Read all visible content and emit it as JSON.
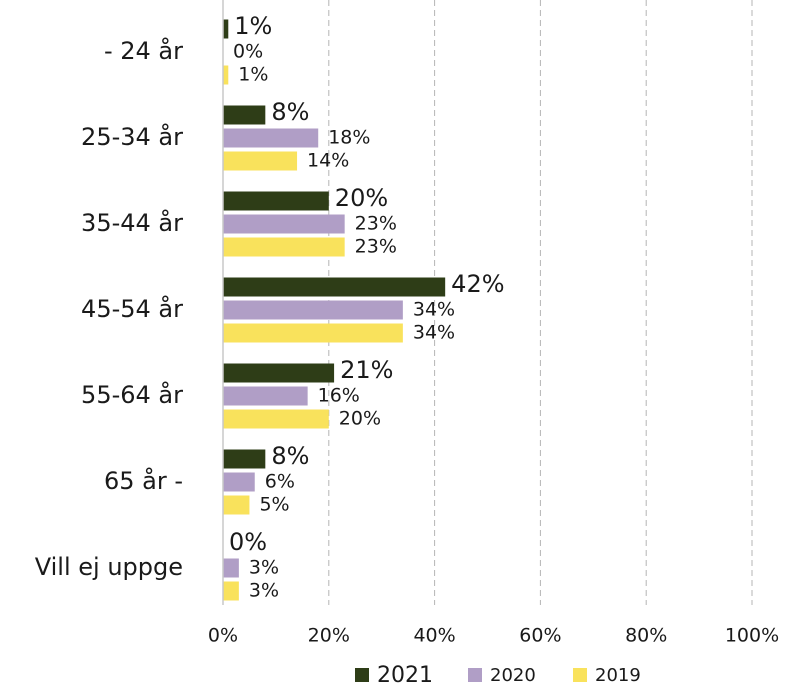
{
  "chart_data": {
    "type": "hbar",
    "categories": [
      "- 24 år",
      "25-34 år",
      "35-44 år",
      "45-54 år",
      "55-64 år",
      "65 år -",
      "Vill ej uppge"
    ],
    "series": [
      {
        "name": "2021",
        "color": "#2e3d17",
        "values": [
          1,
          8,
          20,
          42,
          21,
          8,
          0
        ],
        "value_labels": [
          "1%",
          "8%",
          "20%",
          "42%",
          "21%",
          "8%",
          "0%"
        ]
      },
      {
        "name": "2020",
        "color": "#b09ec6",
        "values": [
          0,
          18,
          23,
          34,
          16,
          6,
          3
        ],
        "value_labels": [
          "0%",
          "18%",
          "23%",
          "34%",
          "16%",
          "6%",
          "3%"
        ]
      },
      {
        "name": "2019",
        "color": "#f9e25c",
        "values": [
          1,
          14,
          23,
          34,
          20,
          5,
          3
        ],
        "value_labels": [
          "1%",
          "14%",
          "23%",
          "34%",
          "20%",
          "5%",
          "3%"
        ]
      }
    ],
    "xlim": [
      0,
      100
    ],
    "xticks": [
      {
        "value": 0,
        "label": "0%"
      },
      {
        "value": 20,
        "label": "20%"
      },
      {
        "value": 40,
        "label": "40%"
      },
      {
        "value": 60,
        "label": "60%"
      },
      {
        "value": 80,
        "label": "80%"
      },
      {
        "value": 100,
        "label": "100%"
      }
    ],
    "grid": true,
    "legend": "bottom"
  }
}
